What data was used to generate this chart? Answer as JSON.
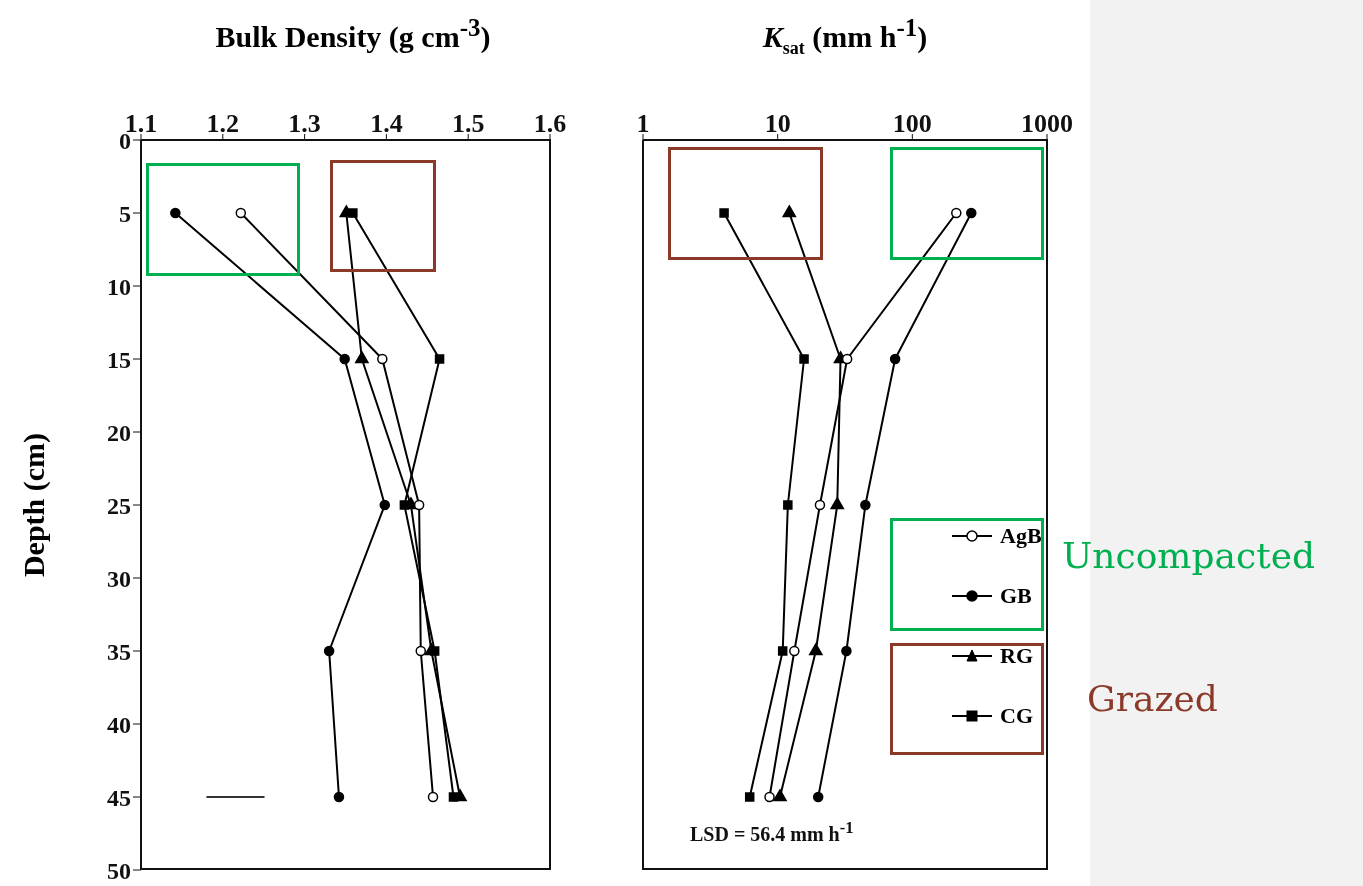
{
  "chart_data": [
    {
      "type": "line",
      "title": "Bulk Density (g cm$^{-3}$)",
      "ylabel": "Depth (cm)",
      "orientation": "horizontal",
      "x": [
        5,
        15,
        25,
        35,
        45
      ],
      "xlim": [
        1.1,
        1.6
      ],
      "xticks": [
        1.1,
        1.2,
        1.3,
        1.4,
        1.5,
        1.6
      ],
      "ylim": [
        50,
        0
      ],
      "yticks": [
        0,
        5,
        10,
        15,
        20,
        25,
        30,
        35,
        40,
        45,
        50
      ],
      "series": [
        {
          "color": "#ffffff",
          "marker": "circle",
          "values": [
            1.222,
            1.395,
            1.44,
            1.442,
            1.457
          ]
        },
        {
          "color": "#000000",
          "marker": "circle",
          "values": [
            1.142,
            1.349,
            1.398,
            1.33,
            1.342
          ]
        },
        {
          "color": "#000000",
          "marker": "triangle",
          "values": [
            1.351,
            1.37,
            1.43,
            1.455,
            1.49
          ]
        },
        {
          "color": "#000000",
          "marker": "square",
          "values": [
            1.359,
            1.465,
            1.422,
            1.459,
            1.482
          ]
        },
        {
          "color": "#333333",
          "marker": "none",
          "x": [
            45,
            45
          ],
          "values": [
            1.18,
            1.251
          ]
        }
      ]
    },
    {
      "type": "line",
      "title": "K$_{sat}$ (mm h$^{-1}$)",
      "orientation": "horizontal",
      "x": [
        5,
        15,
        25,
        35,
        45
      ],
      "log": "x",
      "xlim": [
        1,
        1000
      ],
      "xticks": [
        1,
        10,
        100,
        1000
      ],
      "ylim": [
        50,
        0
      ],
      "yticks": [
        0,
        5,
        10,
        15,
        20,
        25,
        30,
        35,
        40,
        45,
        50
      ],
      "tick_labels": "x",
      "legend": "bottom right",
      "annotations": [
        "LSD = 56.4 mm h$^{-1}$",
        "Uncompacted",
        "Grazed"
      ],
      "series": [
        {
          "name": "AgB",
          "color": "#ffffff",
          "marker": "circle",
          "values": [
            212,
            32.8,
            20.6,
            13.3,
            8.7
          ]
        },
        {
          "name": "GB",
          "color": "#000000",
          "marker": "circle",
          "values": [
            274,
            74.5,
            44.8,
            32.4,
            20.0
          ]
        },
        {
          "name": "RG",
          "color": "#000000",
          "marker": "triangle",
          "values": [
            12.2,
            29.3,
            27.7,
            19.2,
            10.4
          ]
        },
        {
          "name": "CG",
          "color": "#000000",
          "marker": "square",
          "values": [
            4.0,
            15.7,
            11.9,
            10.9,
            6.2
          ]
        }
      ]
    }
  ]
}
